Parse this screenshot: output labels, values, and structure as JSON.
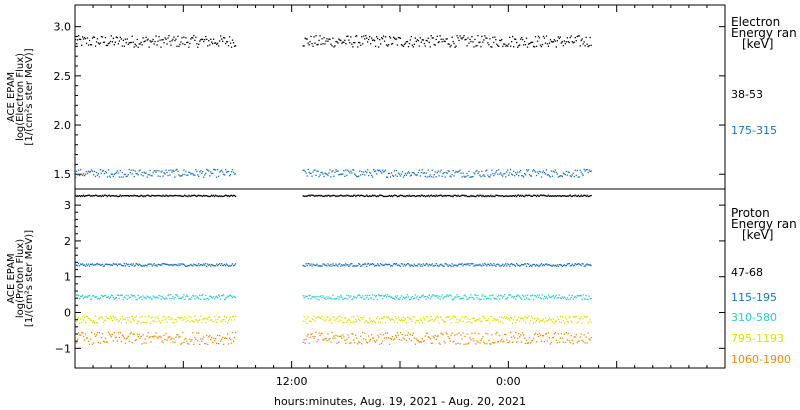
{
  "chart_data": [
    {
      "type": "scatter",
      "panel": "electron",
      "ylabel": [
        "ACE EPAM",
        "log(Electron Flux)",
        "[1/(cm²s ster MeV)]"
      ],
      "ylim": [
        1.35,
        3.22
      ],
      "yticks": [
        {
          "v": 1.5,
          "label": "1.5"
        },
        {
          "v": 2.0,
          "label": "2.0"
        },
        {
          "v": 2.5,
          "label": "2.5"
        },
        {
          "v": 3.0,
          "label": "3.0"
        }
      ],
      "legend_title": [
        "Electron",
        "Energy ran",
        "[keV]"
      ],
      "series": [
        {
          "name": "38-53",
          "color": "#000000",
          "level": 2.85,
          "spread": 0.06
        },
        {
          "name": "175-315",
          "color": "#1a73c0",
          "level": 1.51,
          "spread": 0.04
        }
      ]
    },
    {
      "type": "scatter",
      "panel": "proton",
      "ylabel": [
        "ACE EPAM",
        "log(Proton Flux)",
        "[1/(cm²s ster MeV)]"
      ],
      "ylim": [
        -1.55,
        3.45
      ],
      "yticks": [
        {
          "v": -1,
          "label": "−1"
        },
        {
          "v": 0,
          "label": "0"
        },
        {
          "v": 1,
          "label": "1"
        },
        {
          "v": 2,
          "label": "2"
        },
        {
          "v": 3,
          "label": "3"
        }
      ],
      "legend_title": [
        "Proton",
        "Energy ran",
        "[keV]"
      ],
      "series": [
        {
          "name": "47-68",
          "color": "#000000",
          "level": 3.26,
          "spread": 0.02
        },
        {
          "name": "115-195",
          "color": "#1a73c0",
          "level": 1.33,
          "spread": 0.04
        },
        {
          "name": "310-580",
          "color": "#27d2c4",
          "level": 0.43,
          "spread": 0.07
        },
        {
          "name": "795-1193",
          "color": "#d8e600",
          "level": -0.2,
          "spread": 0.1
        },
        {
          "name": "1060-1900",
          "color": "#f08a00",
          "level": -0.72,
          "spread": 0.17
        }
      ]
    }
  ],
  "x_axis": {
    "xlabel": "hours:minutes, Aug. 19, 2021 - Aug. 20, 2021",
    "ticks": [
      {
        "h": 0,
        "label": ""
      },
      {
        "h": 12,
        "label": "12:00"
      },
      {
        "h": 24,
        "label": "0:00"
      },
      {
        "h": 36,
        "label": ""
      }
    ],
    "range_hours": [
      0,
      36
    ],
    "data_segments_hours": [
      [
        0,
        8.9
      ],
      [
        12.6,
        28.6
      ]
    ]
  }
}
